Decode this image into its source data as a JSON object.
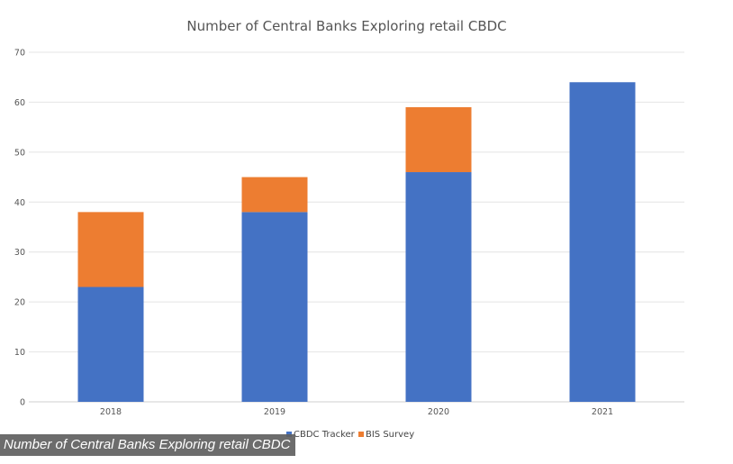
{
  "caption": "Number of Central Banks Exploring retail CBDC",
  "chart_data": {
    "type": "bar",
    "stacked": true,
    "title": "Number of Central Banks Exploring retail CBDC",
    "xlabel": "",
    "ylabel": "",
    "categories": [
      "2018",
      "2019",
      "2020",
      "2021"
    ],
    "ylim": [
      0,
      70
    ],
    "yticks": [
      0,
      10,
      20,
      30,
      40,
      50,
      60,
      70
    ],
    "grid": true,
    "legend_position": "bottom",
    "series": [
      {
        "name": "CBDC Tracker",
        "color": "#4472c4",
        "values": [
          23,
          38,
          46,
          64
        ]
      },
      {
        "name": "BIS Survey",
        "color": "#ed7d31",
        "values": [
          15,
          7,
          13,
          0
        ]
      }
    ]
  }
}
